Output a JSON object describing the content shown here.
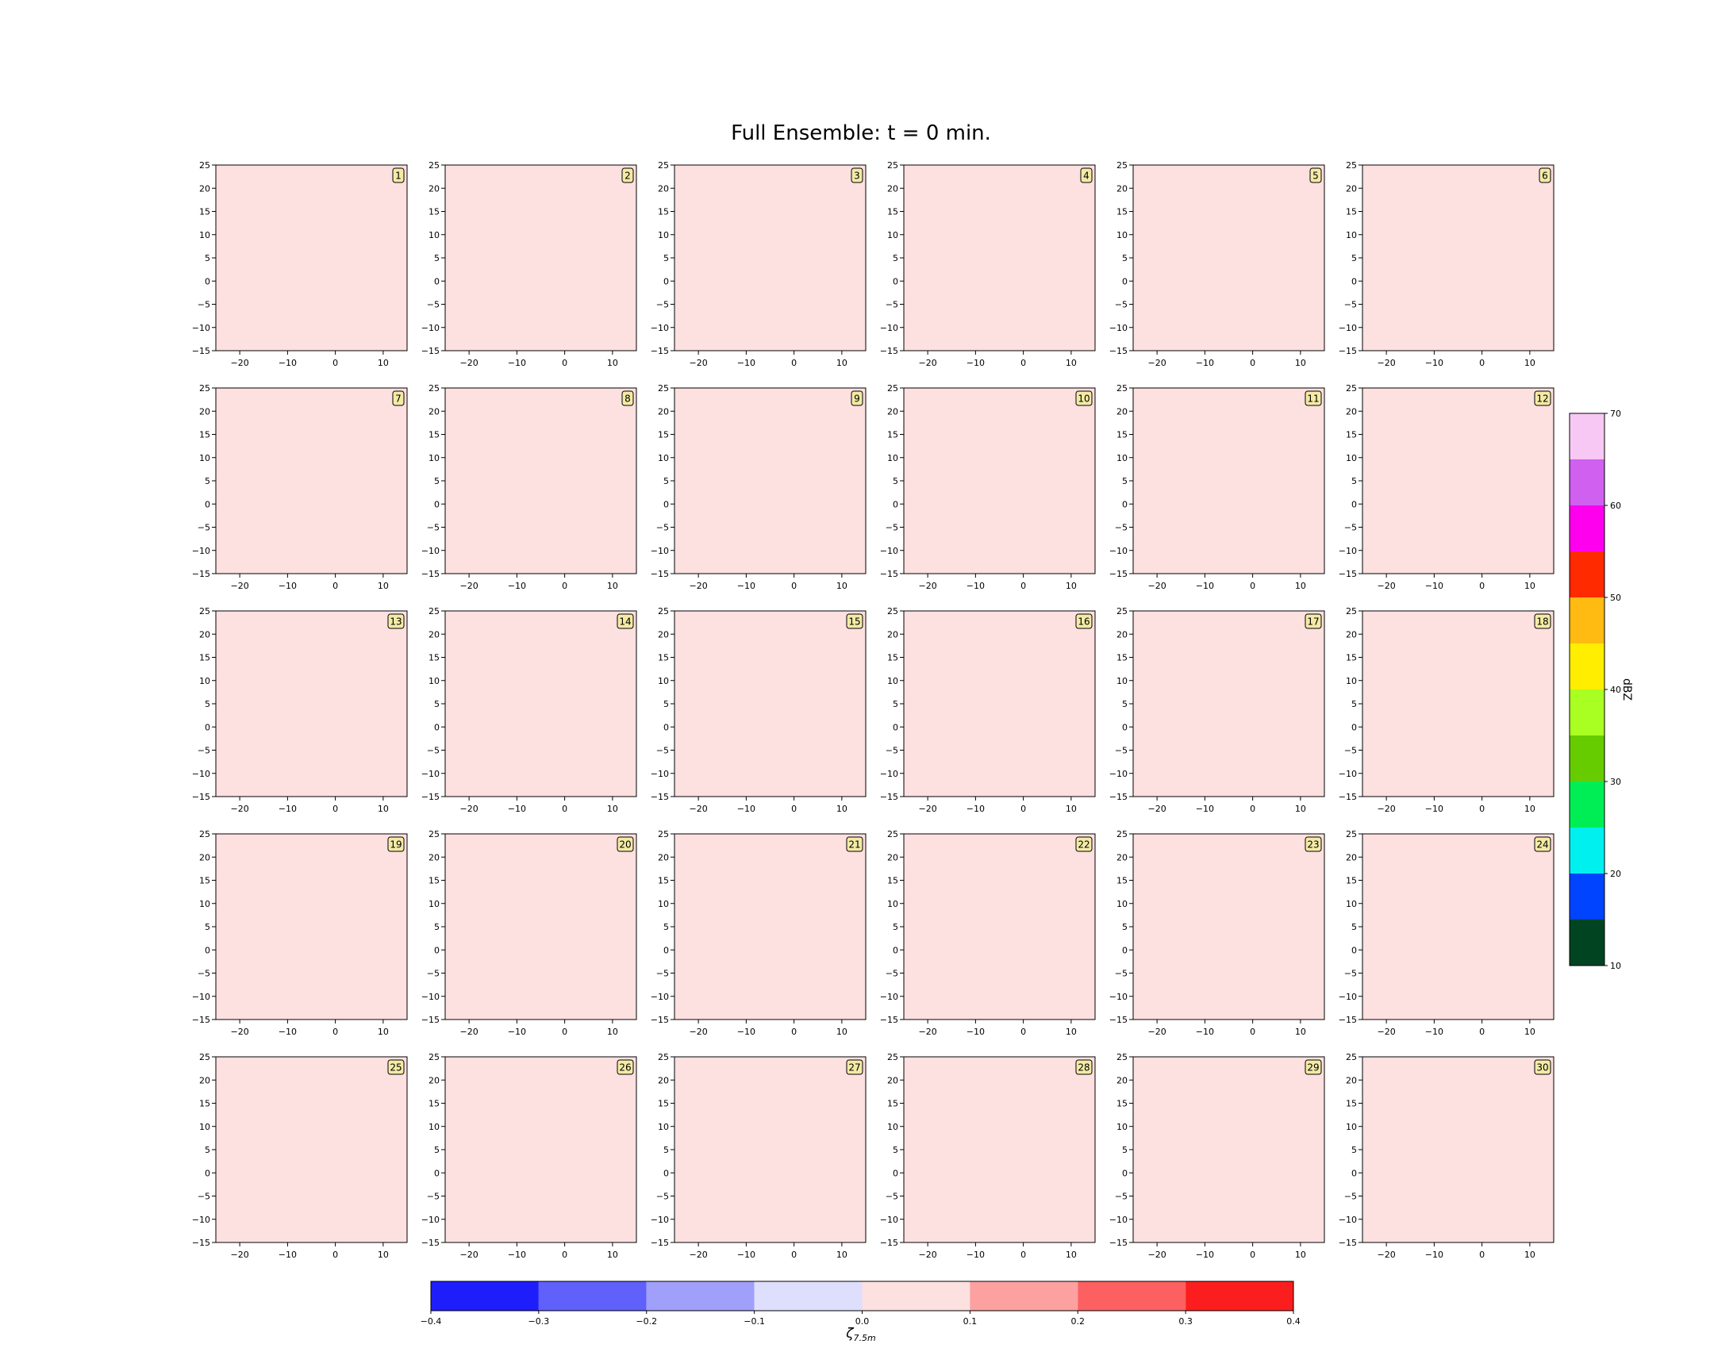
{
  "title": "Full Ensemble: t = 0 min.",
  "chart_data": {
    "type": "heatmap",
    "panel_count": 30,
    "grid": {
      "rows": 5,
      "cols": 6
    },
    "panel_labels": [
      "1",
      "2",
      "3",
      "4",
      "5",
      "6",
      "7",
      "8",
      "9",
      "10",
      "11",
      "12",
      "13",
      "14",
      "15",
      "16",
      "17",
      "18",
      "19",
      "20",
      "21",
      "22",
      "23",
      "24",
      "25",
      "26",
      "27",
      "28",
      "29",
      "30"
    ],
    "xlim": [
      -25,
      15
    ],
    "ylim": [
      -15,
      25
    ],
    "x_ticks": [
      -20,
      -10,
      0,
      10
    ],
    "x_tick_labels": [
      "−20",
      "−10",
      "0",
      "10"
    ],
    "y_ticks": [
      25,
      20,
      15,
      10,
      5,
      0,
      -5,
      -10,
      -15
    ],
    "y_tick_labels": [
      "25",
      "20",
      "15",
      "10",
      "5",
      "0",
      "−5",
      "−10",
      "−15"
    ],
    "field_value_all_panels": 0.0,
    "field_fill_color": "#fde0e0",
    "grid_lines": false,
    "vorticity_colorbar": {
      "label": "ζ",
      "label_subscript": "7.5m",
      "orientation": "horizontal",
      "boundaries": [
        -0.4,
        -0.3,
        -0.2,
        -0.1,
        0.0,
        0.1,
        0.2,
        0.3,
        0.4
      ],
      "tick_labels": [
        "−0.4",
        "−0.3",
        "−0.2",
        "−0.1",
        "0.0",
        "0.1",
        "0.2",
        "0.3",
        "0.4"
      ],
      "colors": [
        "#1e1efc",
        "#6060fb",
        "#a0a0fb",
        "#dedefd",
        "#fde0e0",
        "#fca0a0",
        "#fc6060",
        "#fc1e1e"
      ]
    },
    "reflectivity_colorbar": {
      "label": "dBZ",
      "orientation": "vertical",
      "boundaries": [
        10,
        15,
        20,
        25,
        30,
        35,
        40,
        45,
        50,
        55,
        60,
        65,
        70
      ],
      "ticks": [
        10,
        20,
        30,
        40,
        50,
        60,
        70
      ],
      "tick_labels": [
        "10",
        "20",
        "30",
        "40",
        "50",
        "60",
        "70"
      ],
      "colors": [
        "#004422",
        "#0044ff",
        "#00f0f0",
        "#00ee55",
        "#66cc00",
        "#aaff22",
        "#ffee00",
        "#ffbb11",
        "#ff2a00",
        "#ff00ee",
        "#d060f0",
        "#f8c8f4"
      ]
    }
  }
}
